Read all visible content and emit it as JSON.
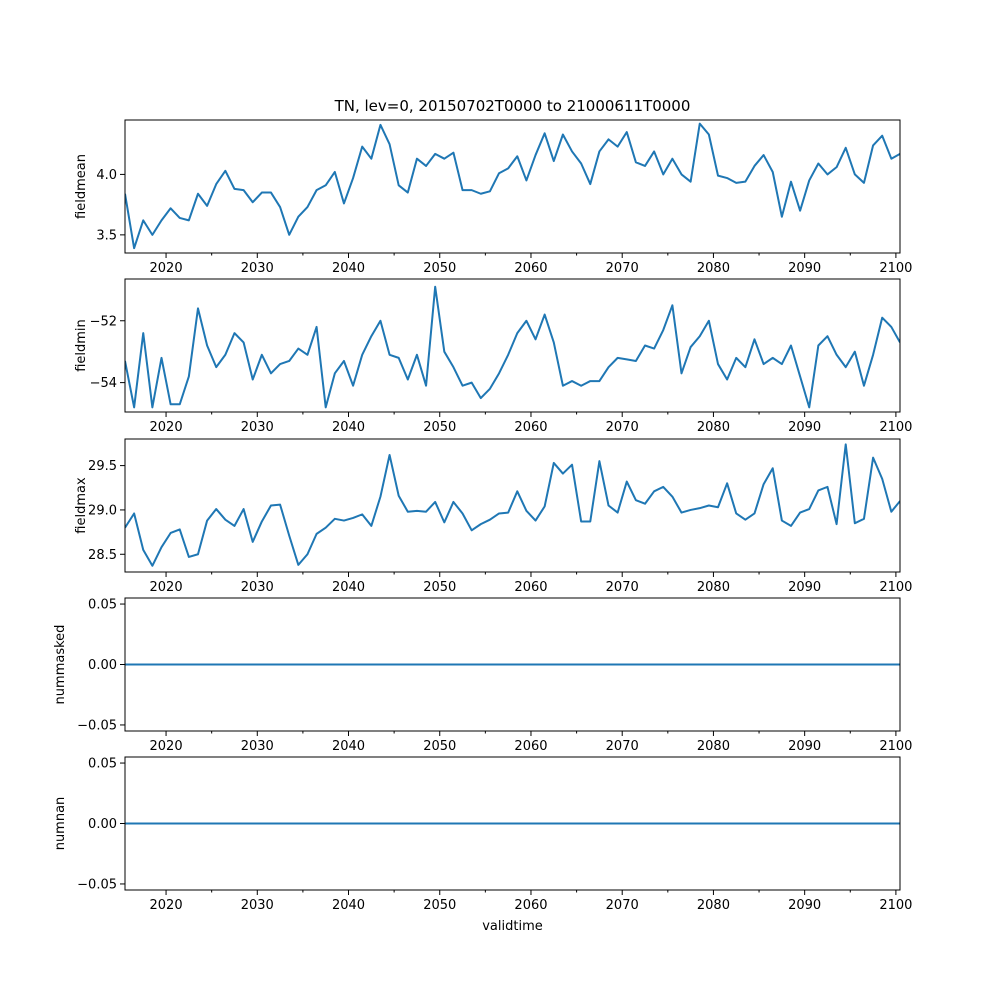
{
  "title": "TN, lev=0, 20150702T0000 to 21000611T0000",
  "xlabel": "validtime",
  "line_color": "#1f77b4",
  "chart_data": [
    {
      "type": "line",
      "ylabel": "fieldmean",
      "xlim": [
        2015.5,
        2100.45
      ],
      "ylim": [
        3.35,
        4.45
      ],
      "xticks": [
        2020,
        2030,
        2040,
        2050,
        2060,
        2070,
        2080,
        2090,
        2100
      ],
      "xtick_labels": [
        "2020",
        "2030",
        "2040",
        "2050",
        "2060",
        "2070",
        "2080",
        "2090",
        "2100"
      ],
      "yticks": [
        3.5,
        4.0
      ],
      "ytick_labels": [
        "3.5",
        "4.0"
      ],
      "x": [
        2015.5,
        2016.5,
        2017.5,
        2018.5,
        2019.5,
        2020.5,
        2021.5,
        2022.5,
        2023.5,
        2024.5,
        2025.5,
        2026.5,
        2027.5,
        2028.5,
        2029.5,
        2030.5,
        2031.5,
        2032.5,
        2033.5,
        2034.5,
        2035.5,
        2036.5,
        2037.5,
        2038.5,
        2039.5,
        2040.5,
        2041.5,
        2042.5,
        2043.5,
        2044.5,
        2045.5,
        2046.5,
        2047.5,
        2048.5,
        2049.5,
        2050.5,
        2051.5,
        2052.5,
        2053.5,
        2054.5,
        2055.5,
        2056.5,
        2057.5,
        2058.5,
        2059.5,
        2060.5,
        2061.5,
        2062.5,
        2063.5,
        2064.5,
        2065.5,
        2066.5,
        2067.5,
        2068.5,
        2069.5,
        2070.5,
        2071.5,
        2072.5,
        2073.5,
        2074.5,
        2075.5,
        2076.5,
        2077.5,
        2078.5,
        2079.5,
        2080.5,
        2081.5,
        2082.5,
        2083.5,
        2084.5,
        2085.5,
        2086.5,
        2087.5,
        2088.5,
        2089.5,
        2090.5,
        2091.5,
        2092.5,
        2093.5,
        2094.5,
        2095.5,
        2096.5,
        2097.5,
        2098.5,
        2099.5,
        2100.45
      ],
      "y": [
        3.84,
        3.39,
        3.62,
        3.5,
        3.62,
        3.72,
        3.64,
        3.62,
        3.84,
        3.74,
        3.92,
        4.03,
        3.88,
        3.87,
        3.77,
        3.85,
        3.85,
        3.73,
        3.5,
        3.65,
        3.73,
        3.87,
        3.91,
        4.02,
        3.76,
        3.97,
        4.23,
        4.13,
        4.41,
        4.25,
        3.91,
        3.85,
        4.13,
        4.07,
        4.17,
        4.13,
        4.18,
        3.87,
        3.87,
        3.84,
        3.86,
        4.01,
        4.05,
        4.15,
        3.95,
        4.16,
        4.34,
        4.11,
        4.33,
        4.19,
        4.09,
        3.92,
        4.19,
        4.29,
        4.23,
        4.35,
        4.1,
        4.07,
        4.19,
        4.0,
        4.13,
        4.0,
        3.94,
        4.42,
        4.33,
        3.99,
        3.97,
        3.93,
        3.94,
        4.07,
        4.16,
        4.02,
        3.65,
        3.94,
        3.7,
        3.95,
        4.09,
        4.0,
        4.06,
        4.22,
        4.0,
        3.93,
        4.24,
        4.32,
        4.13,
        4.17
      ]
    },
    {
      "type": "line",
      "ylabel": "fieldmin",
      "xlim": [
        2015.5,
        2100.45
      ],
      "ylim": [
        -54.95,
        -50.65
      ],
      "xticks": [
        2020,
        2030,
        2040,
        2050,
        2060,
        2070,
        2080,
        2090,
        2100
      ],
      "xtick_labels": [
        "2020",
        "2030",
        "2040",
        "2050",
        "2060",
        "2070",
        "2080",
        "2090",
        "2100"
      ],
      "yticks": [
        -54,
        -52
      ],
      "ytick_labels": [
        "−54",
        "−52"
      ],
      "x": [
        2015.5,
        2016.5,
        2017.5,
        2018.5,
        2019.5,
        2020.5,
        2021.5,
        2022.5,
        2023.5,
        2024.5,
        2025.5,
        2026.5,
        2027.5,
        2028.5,
        2029.5,
        2030.5,
        2031.5,
        2032.5,
        2033.5,
        2034.5,
        2035.5,
        2036.5,
        2037.5,
        2038.5,
        2039.5,
        2040.5,
        2041.5,
        2042.5,
        2043.5,
        2044.5,
        2045.5,
        2046.5,
        2047.5,
        2048.5,
        2049.5,
        2050.5,
        2051.5,
        2052.5,
        2053.5,
        2054.5,
        2055.5,
        2056.5,
        2057.5,
        2058.5,
        2059.5,
        2060.5,
        2061.5,
        2062.5,
        2063.5,
        2064.5,
        2065.5,
        2066.5,
        2067.5,
        2068.5,
        2069.5,
        2070.5,
        2071.5,
        2072.5,
        2073.5,
        2074.5,
        2075.5,
        2076.5,
        2077.5,
        2078.5,
        2079.5,
        2080.5,
        2081.5,
        2082.5,
        2083.5,
        2084.5,
        2085.5,
        2086.5,
        2087.5,
        2088.5,
        2089.5,
        2090.5,
        2091.5,
        2092.5,
        2093.5,
        2094.5,
        2095.5,
        2096.5,
        2097.5,
        2098.5,
        2099.5,
        2100.45
      ],
      "y": [
        -53.3,
        -54.8,
        -52.4,
        -54.8,
        -53.2,
        -54.7,
        -54.7,
        -53.8,
        -51.6,
        -52.8,
        -53.5,
        -53.1,
        -52.4,
        -52.7,
        -53.9,
        -53.1,
        -53.7,
        -53.4,
        -53.3,
        -52.9,
        -53.1,
        -52.2,
        -54.8,
        -53.7,
        -53.3,
        -54.1,
        -53.1,
        -52.5,
        -52.0,
        -53.1,
        -53.2,
        -53.9,
        -53.1,
        -54.1,
        -50.9,
        -53.0,
        -53.5,
        -54.1,
        -54.0,
        -54.5,
        -54.2,
        -53.7,
        -53.1,
        -52.4,
        -52.0,
        -52.6,
        -51.8,
        -52.7,
        -54.1,
        -53.95,
        -54.1,
        -53.95,
        -53.95,
        -53.5,
        -53.2,
        -53.25,
        -53.3,
        -52.8,
        -52.9,
        -52.3,
        -51.5,
        -53.7,
        -52.85,
        -52.5,
        -52.0,
        -53.4,
        -53.9,
        -53.2,
        -53.5,
        -52.6,
        -53.4,
        -53.2,
        -53.4,
        -52.8,
        -53.8,
        -54.8,
        -52.8,
        -52.5,
        -53.1,
        -53.5,
        -53.0,
        -54.1,
        -53.1,
        -51.9,
        -52.2,
        -52.7
      ]
    },
    {
      "type": "line",
      "ylabel": "fieldmax",
      "xlim": [
        2015.5,
        2100.45
      ],
      "ylim": [
        28.3,
        29.8
      ],
      "xticks": [
        2020,
        2030,
        2040,
        2050,
        2060,
        2070,
        2080,
        2090,
        2100
      ],
      "xtick_labels": [
        "2020",
        "2030",
        "2040",
        "2050",
        "2060",
        "2070",
        "2080",
        "2090",
        "2100"
      ],
      "yticks": [
        28.5,
        29.0,
        29.5
      ],
      "ytick_labels": [
        "28.5",
        "29.0",
        "29.5"
      ],
      "x": [
        2015.5,
        2016.5,
        2017.5,
        2018.5,
        2019.5,
        2020.5,
        2021.5,
        2022.5,
        2023.5,
        2024.5,
        2025.5,
        2026.5,
        2027.5,
        2028.5,
        2029.5,
        2030.5,
        2031.5,
        2032.5,
        2033.5,
        2034.5,
        2035.5,
        2036.5,
        2037.5,
        2038.5,
        2039.5,
        2040.5,
        2041.5,
        2042.5,
        2043.5,
        2044.5,
        2045.5,
        2046.5,
        2047.5,
        2048.5,
        2049.5,
        2050.5,
        2051.5,
        2052.5,
        2053.5,
        2054.5,
        2055.5,
        2056.5,
        2057.5,
        2058.5,
        2059.5,
        2060.5,
        2061.5,
        2062.5,
        2063.5,
        2064.5,
        2065.5,
        2066.5,
        2067.5,
        2068.5,
        2069.5,
        2070.5,
        2071.5,
        2072.5,
        2073.5,
        2074.5,
        2075.5,
        2076.5,
        2077.5,
        2078.5,
        2079.5,
        2080.5,
        2081.5,
        2082.5,
        2083.5,
        2084.5,
        2085.5,
        2086.5,
        2087.5,
        2088.5,
        2089.5,
        2090.5,
        2091.5,
        2092.5,
        2093.5,
        2094.5,
        2095.5,
        2096.5,
        2097.5,
        2098.5,
        2099.5,
        2100.45
      ],
      "y": [
        28.8,
        28.96,
        28.55,
        28.37,
        28.58,
        28.74,
        28.78,
        28.47,
        28.5,
        28.88,
        29.01,
        28.89,
        28.82,
        29.01,
        28.64,
        28.87,
        29.05,
        29.06,
        28.71,
        28.38,
        28.5,
        28.73,
        28.8,
        28.9,
        28.88,
        28.91,
        28.95,
        28.82,
        29.15,
        29.62,
        29.16,
        28.98,
        28.99,
        28.98,
        29.09,
        28.86,
        29.09,
        28.96,
        28.77,
        28.84,
        28.89,
        28.96,
        28.97,
        29.21,
        28.99,
        28.88,
        29.04,
        29.53,
        29.41,
        29.51,
        28.87,
        28.87,
        29.55,
        29.05,
        28.97,
        29.32,
        29.11,
        29.07,
        29.21,
        29.26,
        29.15,
        28.97,
        29.0,
        29.02,
        29.05,
        29.03,
        29.3,
        28.96,
        28.89,
        28.96,
        29.29,
        29.47,
        28.88,
        28.82,
        28.97,
        29.01,
        29.22,
        29.26,
        28.84,
        29.74,
        28.85,
        28.9,
        29.59,
        29.35,
        28.98,
        29.1
      ]
    },
    {
      "type": "line",
      "ylabel": "nummasked",
      "xlim": [
        2015.5,
        2100.45
      ],
      "ylim": [
        -0.055,
        0.055
      ],
      "xticks": [
        2020,
        2030,
        2040,
        2050,
        2060,
        2070,
        2080,
        2090,
        2100
      ],
      "xtick_labels": [
        "2020",
        "2030",
        "2040",
        "2050",
        "2060",
        "2070",
        "2080",
        "2090",
        "2100"
      ],
      "yticks": [
        -0.05,
        0.0,
        0.05
      ],
      "ytick_labels": [
        "−0.05",
        "0.00",
        "0.05"
      ],
      "x": [
        2015.5,
        2100.45
      ],
      "y": [
        0,
        0
      ]
    },
    {
      "type": "line",
      "ylabel": "numnan",
      "xlim": [
        2015.5,
        2100.45
      ],
      "ylim": [
        -0.055,
        0.055
      ],
      "xticks": [
        2020,
        2030,
        2040,
        2050,
        2060,
        2070,
        2080,
        2090,
        2100
      ],
      "xtick_labels": [
        "2020",
        "2030",
        "2040",
        "2050",
        "2060",
        "2070",
        "2080",
        "2090",
        "2100"
      ],
      "yticks": [
        -0.05,
        0.0,
        0.05
      ],
      "ytick_labels": [
        "−0.05",
        "0.00",
        "0.05"
      ],
      "x": [
        2015.5,
        2100.45
      ],
      "y": [
        0,
        0
      ]
    }
  ]
}
